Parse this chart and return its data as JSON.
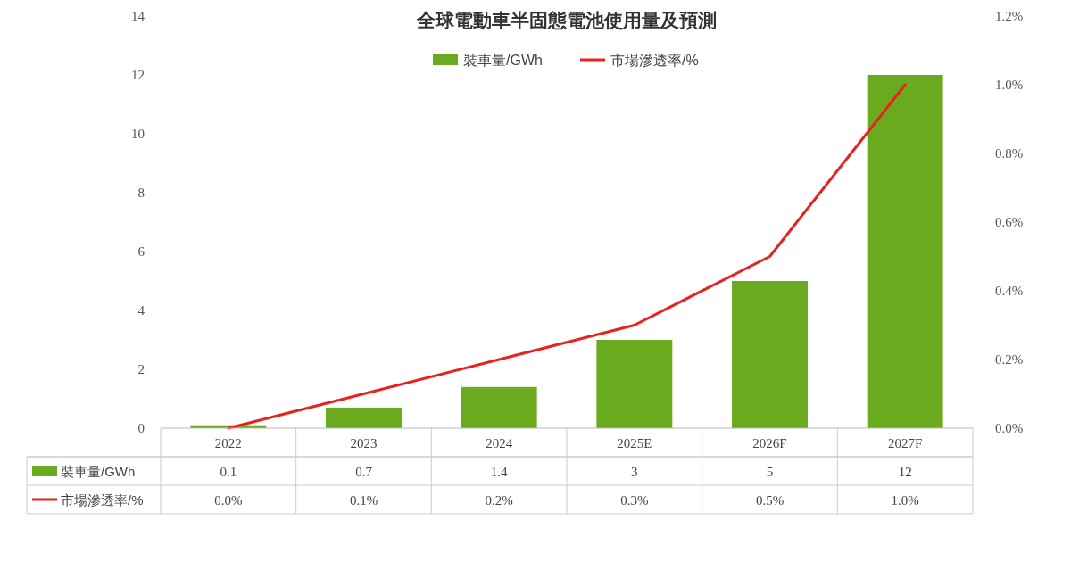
{
  "chart_data": {
    "type": "bar",
    "title": "全球電動車半固態電池使用量及預測",
    "categories": [
      "2022",
      "2023",
      "2024",
      "2025E",
      "2026F",
      "2027F"
    ],
    "series": [
      {
        "name": "裝車量/GWh",
        "color": "#6aaa1e",
        "values": [
          0.1,
          0.7,
          1.4,
          3,
          5,
          12
        ]
      },
      {
        "name": "市場滲透率/%",
        "type": "line",
        "axis": "y2",
        "color": "#e8231f",
        "values": [
          0.0,
          0.1,
          0.2,
          0.3,
          0.5,
          1.0
        ],
        "value_labels": [
          "0.0%",
          "0.1%",
          "0.2%",
          "0.3%",
          "0.5%",
          "1.0%"
        ]
      }
    ],
    "ylim": [
      0,
      14
    ],
    "yticks": [
      0,
      2,
      4,
      6,
      8,
      10,
      12,
      14
    ],
    "y2lim": [
      0,
      1.2
    ],
    "y2ticks": [
      {
        "value": 0,
        "label": "0.0%"
      },
      {
        "value": 0.2,
        "label": "0.2%"
      },
      {
        "value": 0.4,
        "label": "0.4%"
      },
      {
        "value": 0.6,
        "label": "0.6%"
      },
      {
        "value": 0.8,
        "label": "0.8%"
      },
      {
        "value": 1.0,
        "label": "1.0%"
      },
      {
        "value": 1.2,
        "label": "1.2%"
      }
    ],
    "legend": "top",
    "data_labels": true,
    "grid": false
  }
}
